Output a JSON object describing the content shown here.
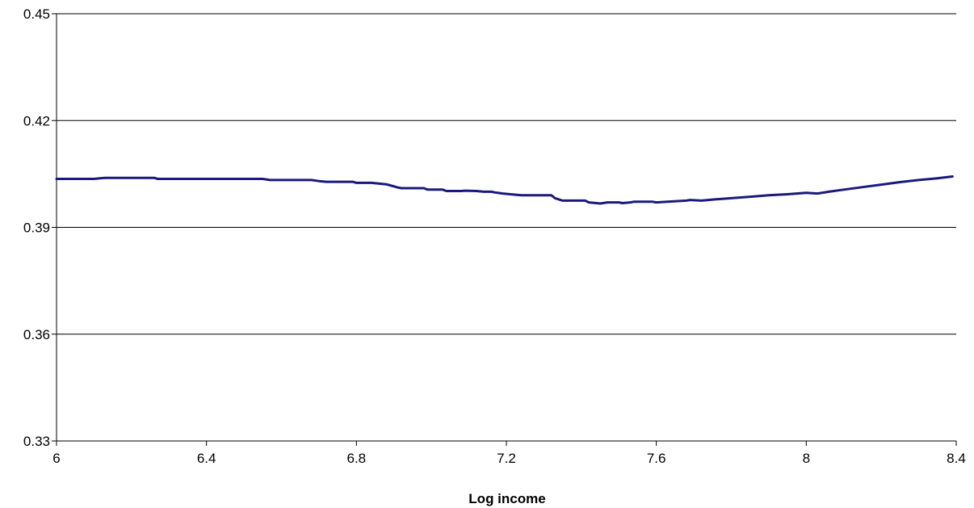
{
  "chart_data": {
    "type": "line",
    "title": "",
    "xlabel": "Log income",
    "ylabel": "",
    "xlim": [
      6,
      8.4
    ],
    "ylim": [
      0.33,
      0.45
    ],
    "xticks": [
      "6",
      "6.4",
      "6.8",
      "7.2",
      "7.6",
      "8",
      "8.4"
    ],
    "yticks": [
      "0.45",
      "0.42",
      "0.39",
      "0.36",
      "0.33"
    ],
    "grid": "horizontal",
    "legend": "none",
    "series": [
      {
        "color": "#1a1a7e",
        "x": [
          6.0,
          6.1,
          6.13,
          6.26,
          6.27,
          6.55,
          6.57,
          6.68,
          6.7,
          6.72,
          6.79,
          6.8,
          6.84,
          6.88,
          6.89,
          6.91,
          6.92,
          6.98,
          6.99,
          7.03,
          7.04,
          7.08,
          7.09,
          7.12,
          7.14,
          7.16,
          7.17,
          7.19,
          7.21,
          7.24,
          7.32,
          7.33,
          7.35,
          7.41,
          7.42,
          7.44,
          7.45,
          7.47,
          7.5,
          7.51,
          7.53,
          7.54,
          7.59,
          7.6,
          7.63,
          7.68,
          7.69,
          7.72,
          7.75,
          7.8,
          7.85,
          7.9,
          7.95,
          8.0,
          8.03,
          8.06,
          8.1,
          8.15,
          8.2,
          8.25,
          8.3,
          8.35,
          8.39
        ],
        "y": [
          0.4036,
          0.4036,
          0.4039,
          0.4039,
          0.4036,
          0.4036,
          0.4033,
          0.4033,
          0.403,
          0.4028,
          0.4028,
          0.4025,
          0.4025,
          0.4021,
          0.4018,
          0.4012,
          0.401,
          0.401,
          0.4006,
          0.4006,
          0.4002,
          0.4002,
          0.4003,
          0.4002,
          0.4,
          0.4,
          0.3998,
          0.3995,
          0.3993,
          0.399,
          0.399,
          0.3982,
          0.3975,
          0.3975,
          0.397,
          0.3968,
          0.3967,
          0.397,
          0.397,
          0.3968,
          0.397,
          0.3972,
          0.3972,
          0.397,
          0.3972,
          0.3975,
          0.3977,
          0.3975,
          0.3978,
          0.3982,
          0.3986,
          0.399,
          0.3993,
          0.3997,
          0.3995,
          0.4,
          0.4006,
          0.4013,
          0.402,
          0.4027,
          0.4033,
          0.4038,
          0.4043
        ]
      }
    ]
  }
}
